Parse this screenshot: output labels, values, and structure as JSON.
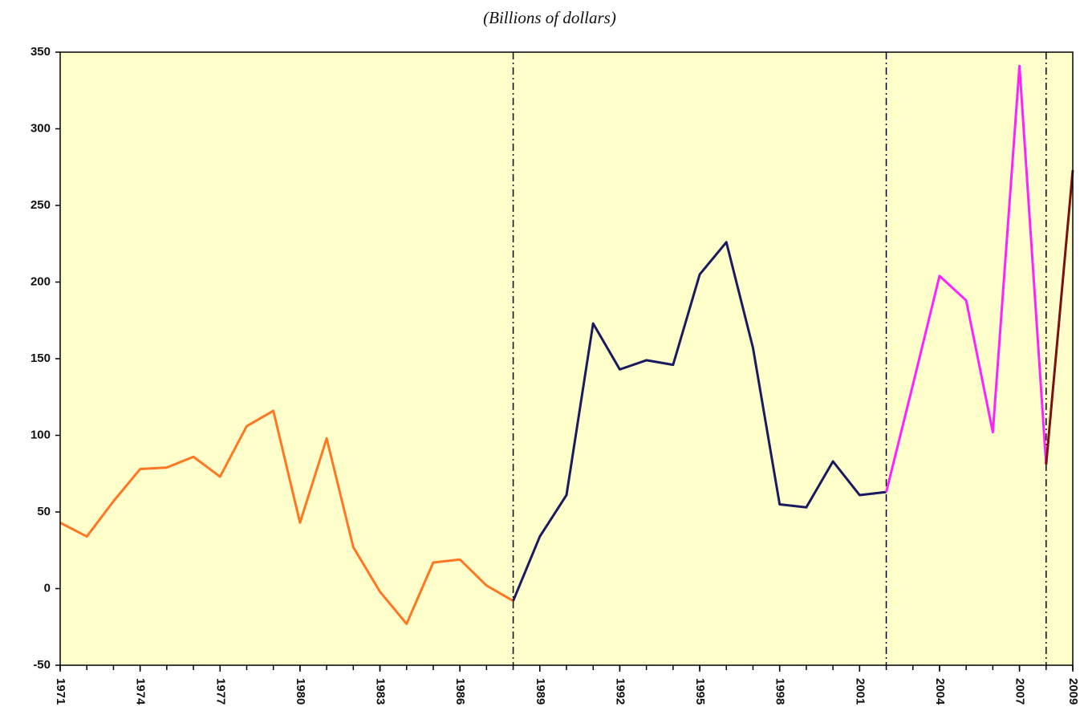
{
  "chart_data": {
    "type": "line",
    "subtitle": "(Billions of dollars)",
    "series": [
      {
        "color": "#ff7722",
        "x": [
          1971,
          1972,
          1973,
          1974,
          1975,
          1976,
          1977,
          1978,
          1979,
          1980,
          1981,
          1982,
          1983,
          1984,
          1985,
          1986,
          1987,
          1988
        ],
        "values": [
          43,
          34,
          57,
          78,
          79,
          86,
          73,
          106,
          116,
          43,
          98,
          27,
          -2,
          -23,
          17,
          19,
          2,
          -8
        ]
      },
      {
        "color": "#1a1a5e",
        "x": [
          1988,
          1989,
          1990,
          1991,
          1992,
          1993,
          1994,
          1995,
          1996,
          1997,
          1998,
          1999,
          2000,
          2001,
          2002
        ],
        "values": [
          -8,
          34,
          61,
          173,
          143,
          149,
          146,
          205,
          226,
          157,
          55,
          53,
          83,
          61,
          63
        ]
      },
      {
        "color": "#ff22ff",
        "x": [
          2002,
          2003,
          2004,
          2005,
          2006,
          2007,
          2008
        ],
        "values": [
          63,
          133,
          204,
          188,
          102,
          341,
          81
        ]
      },
      {
        "color": "#7a1010",
        "x": [
          2008,
          2009
        ],
        "values": [
          81,
          273
        ]
      }
    ],
    "xlim": [
      1971,
      2009
    ],
    "xticks": [
      1971,
      1974,
      1977,
      1980,
      1983,
      1986,
      1989,
      1992,
      1995,
      1998,
      2001,
      2004,
      2007,
      2009
    ],
    "xminor_step": 1,
    "ylim": [
      -50,
      350
    ],
    "yticks": [
      -50,
      0,
      50,
      100,
      150,
      200,
      250,
      300,
      350
    ],
    "vlines": [
      1988,
      2002,
      2008
    ],
    "background": "#ffffcc"
  }
}
